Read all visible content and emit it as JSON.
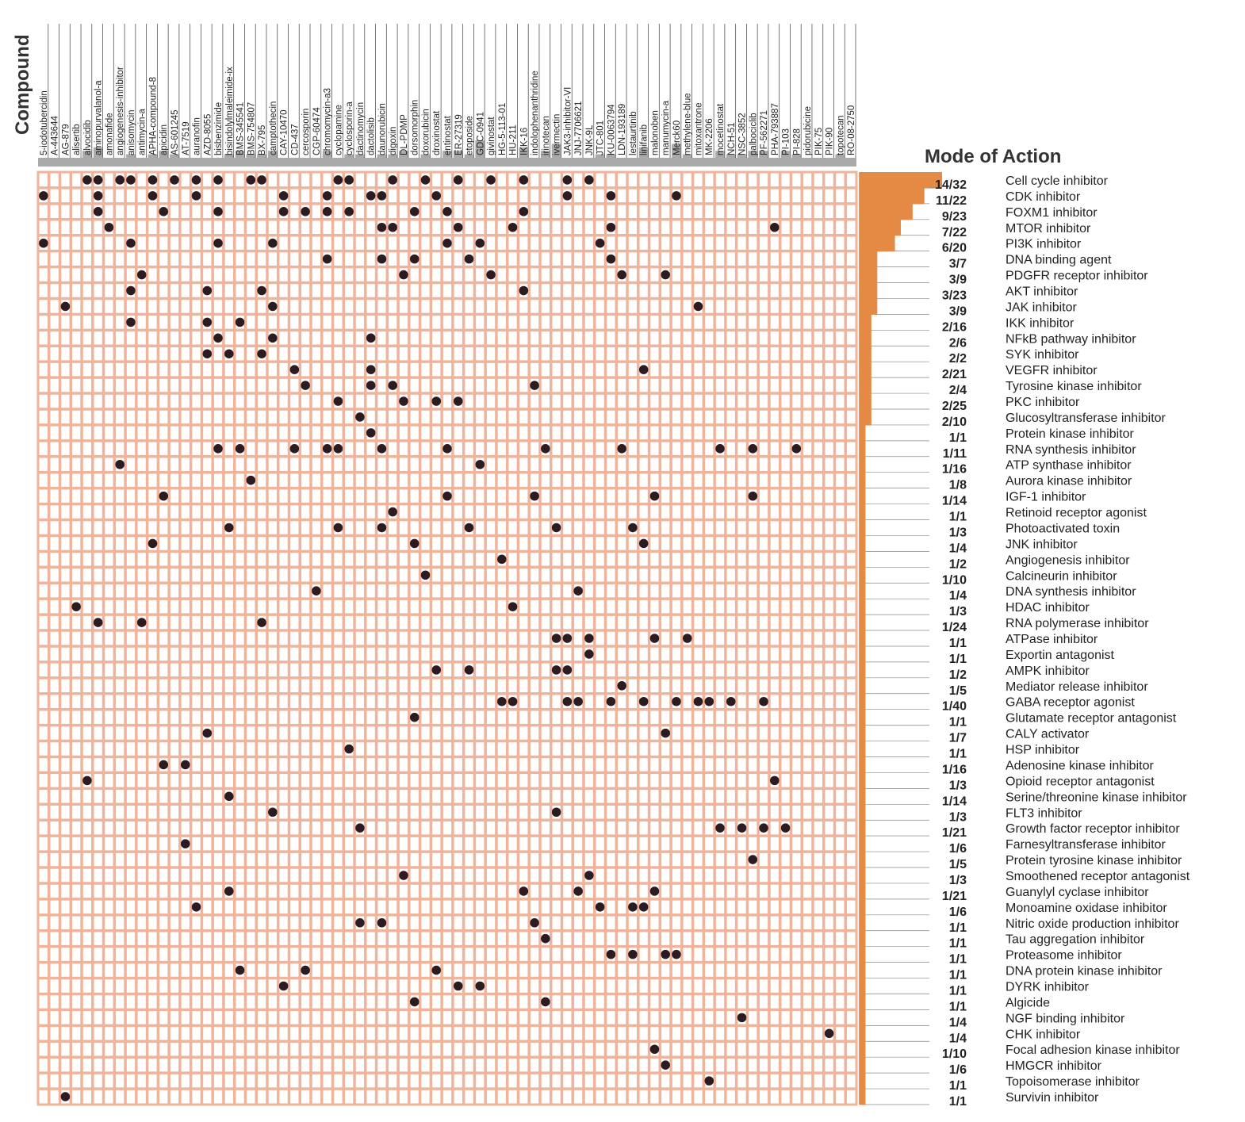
{
  "chart_data": {
    "type": "heatmap",
    "column_axis_title": "Compound",
    "row_axis_title": "Mode of Action",
    "colors": {
      "grid_fill": "#ffffff",
      "grid_line": "#f0b49a",
      "dot": "#2b1b22",
      "bar": "#e58a45",
      "header_bar": "#aaaaaa"
    },
    "compounds": [
      "5-iodotubercidin",
      "A-443644",
      "AG-879",
      "alisertib",
      "alvocidib",
      "aminopurvalanol-a",
      "amonafide",
      "angiogenesis-inhibitor",
      "anisomycin",
      "antimycin-a",
      "APHA-compound-8",
      "apicidin",
      "AS-601245",
      "AT-7519",
      "auranofin",
      "AZD-8055",
      "bisbenzimide",
      "bisindolylmaleimide-ix",
      "BMS-345541",
      "BMS-754807",
      "BX-795",
      "camptothecin",
      "CAY-10470",
      "CD-437",
      "cercosporin",
      "CGP-60474",
      "chromomycin-a3",
      "cyclopamine",
      "cyclosporin-a",
      "dactinomycin",
      "dactolisib",
      "daunorubicin",
      "digoxin",
      "DL-PDMP",
      "dorsomorphin",
      "doxorubicin",
      "droxinostat",
      "entinostat",
      "ER-27319",
      "etoposide",
      "GDC-0941",
      "givinostat",
      "HG-5-113-01",
      "HU-211",
      "IKK-16",
      "indolophenanthridine",
      "irinotecan",
      "ivermectin",
      "JAK3-inhibitor-VI",
      "JNJ-7706621",
      "JNK-9L",
      "JTC-801",
      "KU-0063794",
      "LDN-193189",
      "lestaurtinib",
      "linifanib",
      "malonoben",
      "manumycin-a",
      "Merck60",
      "methylene-blue",
      "mitoxantrone",
      "MK-2206",
      "mocetinostat",
      "NCH-51",
      "NSC-3852",
      "palbociclib",
      "PF-562271",
      "PHA-793887",
      "PI-103",
      "PI-828",
      "pidorubicine",
      "PIK-75",
      "PIK-90",
      "topotecan",
      "RO-08-2750"
    ],
    "modes_of_action": [
      "Cell cycle inhibitor",
      "CDK inhibitor",
      "FOXM1 inhibitor",
      "MTOR inhibitor",
      "PI3K inhibitor",
      "DNA binding agent",
      "PDGFR receptor inhibitor",
      "AKT inhibitor",
      "JAK inhibitor",
      "IKK inhibitor",
      "NFkB pathway inhibitor",
      "SYK inhibitor",
      "VEGFR inhibitor",
      "Tyrosine kinase inhibitor",
      "PKC inhibitor",
      "Glucosyltransferase inhibitor",
      "Protein kinase inhibitor",
      "RNA synthesis inhibitor",
      "ATP synthase inhibitor",
      "Aurora kinase inhibitor",
      "IGF-1 inhibitor",
      "Retinoid receptor agonist",
      "Photoactivated toxin",
      "JNK inhibitor",
      "Angiogenesis inhibitor",
      "Calcineurin inhibitor",
      "DNA synthesis inhibitor",
      "HDAC inhibitor",
      "RNA polymerase inhibitor",
      "ATPase inhibitor",
      "Exportin antagonist",
      "AMPK inhibitor",
      "Mediator release inhibitor",
      "GABA receptor agonist",
      "Glutamate receptor antagonist",
      "CALY activator",
      "HSP inhibitor",
      "Adenosine kinase inhibitor",
      "Opioid receptor antagonist",
      "Serine/threonine kinase inhibitor",
      "FLT3 inhibitor",
      "Growth factor receptor inhibitor",
      "Farnesyltransferase inhibitor",
      "Protein tyrosine kinase inhibitor",
      "Smoothened receptor antagonist",
      "Guanylyl cyclase inhibitor",
      "Monoamine oxidase inhibitor",
      "Nitric oxide production inhibitor",
      "Tau aggregation inhibitor",
      "Proteasome inhibitor",
      "DNA protein kinase inhibitor",
      "DYRK inhibitor",
      "Algicide",
      "NGF binding inhibitor",
      "CHK inhibitor",
      "Focal adhesion kinase inhibitor",
      "HMGCR inhibitor",
      "Topoisomerase inhibitor",
      "Survivin inhibitor"
    ],
    "ratios": [
      "14/32",
      "11/22",
      "9/23",
      "7/22",
      "6/20",
      "3/7",
      "3/9",
      "3/23",
      "3/9",
      "2/16",
      "2/6",
      "2/2",
      "2/21",
      "2/4",
      "2/25",
      "2/10",
      "1/1",
      "1/11",
      "1/16",
      "1/8",
      "1/14",
      "1/1",
      "1/3",
      "1/4",
      "1/2",
      "1/10",
      "1/4",
      "1/3",
      "1/24",
      "1/1",
      "1/1",
      "1/2",
      "1/5",
      "1/40",
      "1/1",
      "1/7",
      "1/1",
      "1/16",
      "1/3",
      "1/14",
      "1/3",
      "1/21",
      "1/6",
      "1/5",
      "1/3",
      "1/21",
      "1/6",
      "1/1",
      "1/1",
      "1/1",
      "1/1",
      "1/1",
      "1/1",
      "1/4",
      "1/4",
      "1/10",
      "1/6",
      "1/1",
      "1/1"
    ],
    "bar_values": [
      14,
      11,
      9,
      7,
      6,
      3,
      3,
      3,
      3,
      2,
      2,
      2,
      2,
      2,
      2,
      2,
      1,
      1,
      1,
      1,
      1,
      1,
      1,
      1,
      1,
      1,
      1,
      1,
      1,
      1,
      1,
      1,
      1,
      1,
      1,
      1,
      1,
      1,
      1,
      1,
      1,
      1,
      1,
      1,
      1,
      1,
      1,
      1,
      1,
      1,
      1,
      1,
      1,
      1,
      1,
      1,
      1,
      1,
      1
    ],
    "bar_max": 14,
    "compound_bar_values": [
      1,
      1,
      1,
      1,
      3,
      4,
      1,
      1,
      2,
      1,
      2,
      3,
      2,
      1,
      1,
      1,
      1,
      2,
      3,
      2,
      2,
      3,
      1,
      1,
      1,
      1,
      3,
      1,
      2,
      2,
      1,
      2,
      2,
      3,
      1,
      2,
      1,
      3,
      3,
      2,
      6,
      1,
      1,
      1,
      4,
      1,
      3,
      5,
      1,
      1,
      1,
      2,
      2,
      1,
      1,
      4,
      1,
      1,
      5,
      2,
      1,
      1,
      3,
      2,
      2,
      3,
      3,
      1,
      3,
      2,
      1,
      1,
      1,
      2,
      1
    ],
    "hits": [
      [
        4,
        5,
        7,
        8,
        10,
        12,
        14,
        16,
        19,
        20,
        27,
        28,
        32,
        35,
        38,
        41,
        44,
        48,
        50
      ],
      [
        0,
        5,
        10,
        14,
        22,
        26,
        30,
        31,
        36,
        48,
        52,
        58
      ],
      [
        5,
        11,
        16,
        22,
        24,
        26,
        28,
        34,
        37,
        44
      ],
      [
        6,
        31,
        32,
        38,
        43,
        52,
        67
      ],
      [
        0,
        8,
        16,
        21,
        37,
        40,
        51
      ],
      [
        26,
        31,
        34,
        39,
        52
      ],
      [
        9,
        33,
        41,
        53,
        57
      ],
      [
        8,
        15,
        20,
        44
      ],
      [
        2,
        21,
        60
      ],
      [
        8,
        15,
        18
      ],
      [
        16,
        21,
        30
      ],
      [
        15,
        17,
        20
      ],
      [
        23,
        30,
        55
      ],
      [
        24,
        30,
        32,
        45
      ],
      [
        27,
        33,
        36,
        38
      ],
      [
        29
      ],
      [
        30
      ],
      [
        16,
        18,
        23,
        26,
        27,
        31,
        37,
        46,
        53,
        62,
        65,
        69
      ],
      [
        7,
        40
      ],
      [
        19
      ],
      [
        11,
        37,
        45,
        56,
        65
      ],
      [
        32
      ],
      [
        17,
        27,
        31,
        39,
        47,
        54
      ],
      [
        10,
        34,
        55
      ],
      [
        42
      ],
      [
        35
      ],
      [
        25,
        49
      ],
      [
        3,
        43
      ],
      [
        5,
        9,
        20
      ],
      [
        47,
        48,
        50,
        56,
        59
      ],
      [
        50
      ],
      [
        36,
        39,
        47,
        48
      ],
      [
        53
      ],
      [
        42,
        43,
        48,
        49,
        52,
        55,
        58,
        60,
        61,
        63,
        66
      ],
      [
        34
      ],
      [
        15,
        57
      ],
      [
        28
      ],
      [
        11,
        13
      ],
      [
        4,
        67
      ],
      [
        17
      ],
      [
        21,
        47
      ],
      [
        29,
        62,
        64,
        66,
        68
      ],
      [
        13
      ],
      [
        65
      ],
      [
        33,
        50
      ],
      [
        17,
        44,
        49,
        56
      ],
      [
        14,
        51,
        54,
        55
      ],
      [
        29,
        31,
        45
      ],
      [
        46
      ],
      [
        52,
        54,
        57,
        58
      ],
      [
        18,
        24,
        36
      ],
      [
        22,
        38,
        40
      ],
      [
        34,
        46
      ],
      [
        64
      ],
      [
        72
      ],
      [
        56
      ],
      [
        57
      ],
      [
        61
      ],
      [
        2
      ]
    ]
  }
}
